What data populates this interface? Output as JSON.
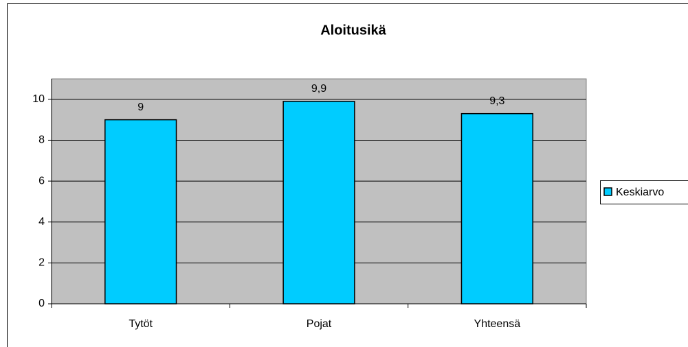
{
  "chart_data": {
    "type": "bar",
    "title": "Aloitusikä",
    "categories": [
      "Tytöt",
      "Pojat",
      "Yhteensä"
    ],
    "series": [
      {
        "name": "Keskiarvo",
        "color": "#00ccff",
        "values": [
          9,
          9.9,
          9.3
        ],
        "value_labels": [
          "9",
          "9,9",
          "9,3"
        ]
      }
    ],
    "ylim": [
      0,
      11
    ],
    "yticks": [
      0,
      2,
      4,
      6,
      8,
      10
    ],
    "grid": true,
    "legend": "right"
  }
}
